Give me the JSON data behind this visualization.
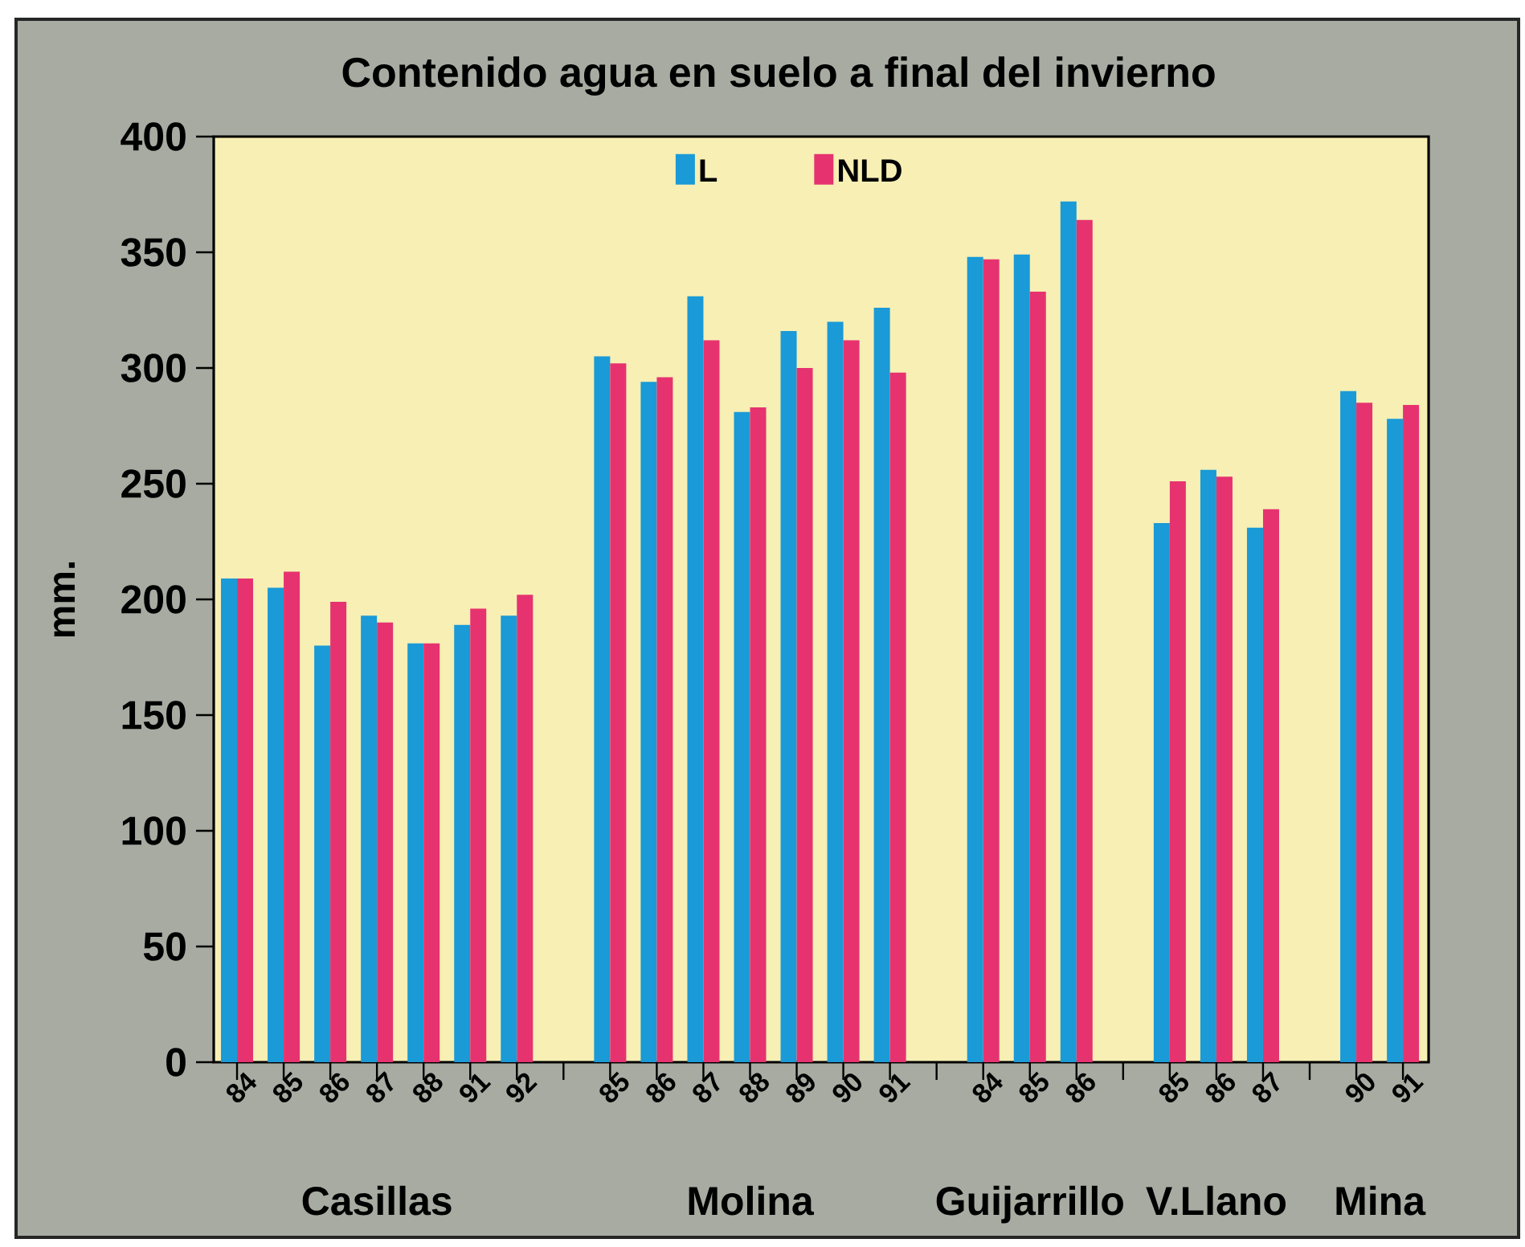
{
  "chart_data": {
    "type": "bar",
    "title": "Contenido agua en suelo a final del invierno",
    "ylabel": "mm.",
    "categories": [
      "84",
      "85",
      "86",
      "87",
      "88",
      "91",
      "92",
      null,
      "85",
      "86",
      "87",
      "88",
      "89",
      "90",
      "91",
      null,
      "84",
      "85",
      "86",
      null,
      "85",
      "86",
      "87",
      null,
      "90",
      "91"
    ],
    "series": [
      {
        "name": "L",
        "color": "#1a9ad7",
        "values": [
          209,
          205,
          180,
          193,
          181,
          189,
          193,
          null,
          305,
          294,
          331,
          281,
          316,
          320,
          326,
          null,
          348,
          349,
          372,
          null,
          233,
          256,
          231,
          null,
          290,
          278
        ]
      },
      {
        "name": "NLD",
        "color": "#e6336f",
        "values": [
          209,
          212,
          199,
          190,
          181,
          196,
          202,
          null,
          302,
          296,
          312,
          283,
          300,
          312,
          298,
          null,
          347,
          333,
          364,
          null,
          251,
          253,
          239,
          null,
          285,
          284
        ]
      }
    ],
    "ylim": [
      0,
      400
    ],
    "yticks": [
      0,
      50,
      100,
      150,
      200,
      250,
      300,
      350,
      400
    ],
    "legend": "top",
    "annotations": [
      "Casillas",
      "Molina",
      "Guijarrillo",
      "V.Llano",
      "Mina"
    ]
  }
}
